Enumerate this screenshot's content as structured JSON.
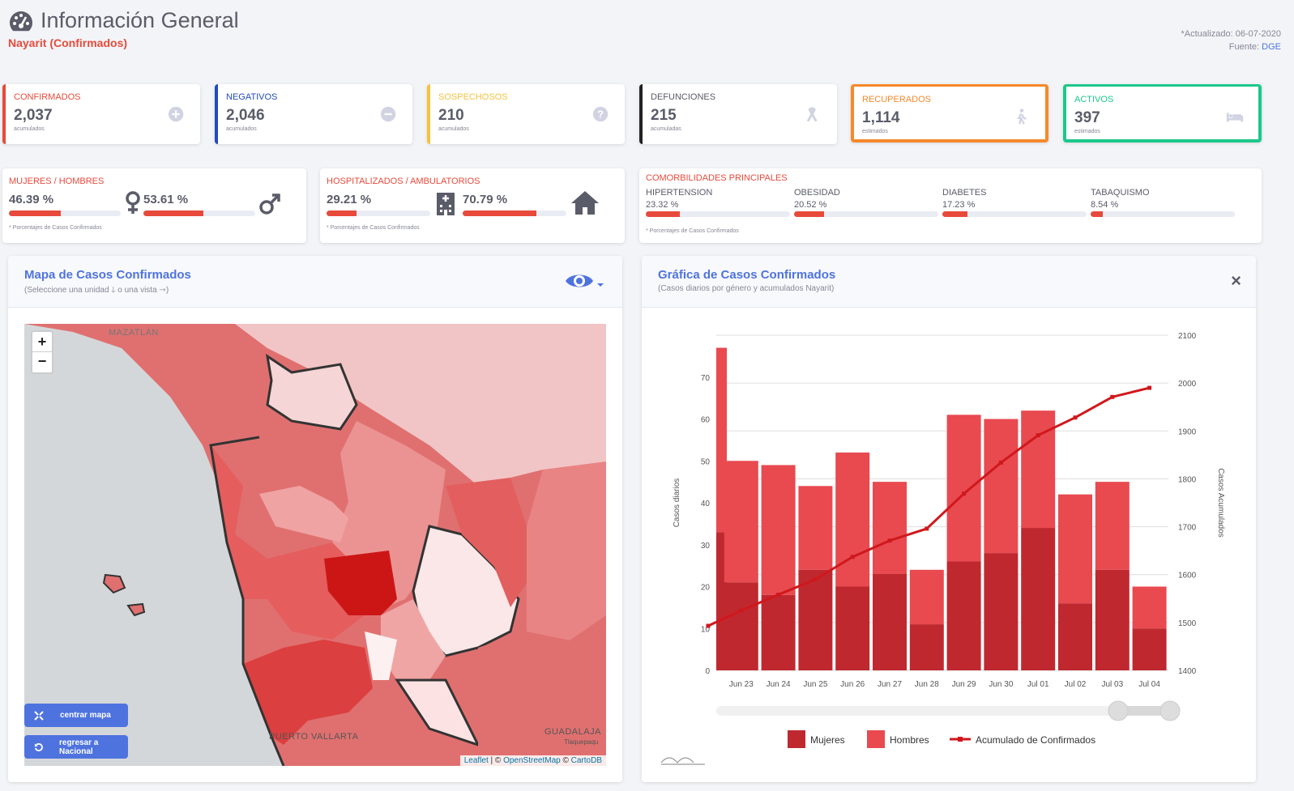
{
  "header": {
    "title": "Información General",
    "subtitle": "Nayarit (Confirmados)",
    "updated": "*Actualizado: 06-07-2020",
    "source_label": "Fuente:",
    "source_link": "DGE"
  },
  "kpis": [
    {
      "label": "CONFIRMADOS",
      "value": "2,037",
      "note": "acumulados",
      "color": "#e74a3b",
      "icon": "plus-circle-icon"
    },
    {
      "label": "NEGATIVOS",
      "value": "2,046",
      "note": "acumulados",
      "color": "#224abe",
      "icon": "minus-circle-icon"
    },
    {
      "label": "SOSPECHOSOS",
      "value": "210",
      "note": "acumulados",
      "color": "#f6c23e",
      "icon": "question-circle-icon"
    },
    {
      "label": "DEFUNCIONES",
      "value": "215",
      "note": "acumuladas",
      "color": "#222222",
      "icon": "ribbon-icon"
    },
    {
      "label": "RECUPERADOS",
      "value": "1,114",
      "note": "estimados",
      "color": "#f6892b",
      "icon": "walking-icon"
    },
    {
      "label": "ACTIVOS",
      "value": "397",
      "note": "estimados",
      "color": "#1cc88a",
      "icon": "bed-icon"
    }
  ],
  "gender": {
    "title": "MUJERES / HOMBRES",
    "women_pct": "46.39 %",
    "men_pct": "53.61 %",
    "women": 46.39,
    "men": 53.61,
    "footnote": "* Porcentajes  de Casos Confirmados"
  },
  "hosp": {
    "title": "HOSPITALIZADOS / AMBULATORIOS",
    "hosp_pct": "29.21 %",
    "amb_pct": "70.79 %",
    "hosp": 29.21,
    "amb": 70.79,
    "footnote": "* Porcentajes  de Casos Confirmados"
  },
  "comorb": {
    "title": "COMORBILIDADES PRINCIPALES",
    "footnote": "* Porcentajes  de Casos Confirmados",
    "items": [
      {
        "name": "HIPERTENSION",
        "pct": "23.32 %",
        "v": 23.32
      },
      {
        "name": "OBESIDAD",
        "pct": "20.52 %",
        "v": 20.52
      },
      {
        "name": "DIABETES",
        "pct": "17.23 %",
        "v": 17.23
      },
      {
        "name": "TABAQUISMO",
        "pct": "8.54 %",
        "v": 8.54
      }
    ]
  },
  "map": {
    "title": "Mapa de Casos Confirmados",
    "subtitle": "(Seleccione una unidad 🡓 o una vista 🡒)",
    "zoom_in": "+",
    "zoom_out": "−",
    "labels": {
      "mazatlan": "MAZATLÁN",
      "pv": "PUERTO VALLARTA",
      "gdl": "GUADALAJA",
      "tlq": "Tlaquepaqu"
    },
    "btn_center": "centrar mapa",
    "btn_back": "regresar a Nacional",
    "attribution": {
      "leaflet": "Leaflet",
      "sep": " | © ",
      "osm": "OpenStreetMap",
      "sep2": " © ",
      "carto": "CartoDB"
    }
  },
  "chart_panel": {
    "title": "Gráfica de Casos Confirmados",
    "subtitle": "(Casos diarios por género y acumulados Nayarit)",
    "close": "×"
  },
  "chart_data": {
    "type": "bar",
    "categories": [
      "",
      "Jun 23",
      "Jun 24",
      "Jun 25",
      "Jun 26",
      "Jun 27",
      "Jun 28",
      "Jun 29",
      "Jun 30",
      "Jul 01",
      "Jul 02",
      "Jul 03",
      "Jul 04"
    ],
    "tick_labels": [
      "Jun 23",
      "Jun 24",
      "Jun 25",
      "Jun 26",
      "Jun 27",
      "Jun 28",
      "Jun 29",
      "Jun 30",
      "Jul 01",
      "Jul 02",
      "Jul 03",
      "Jul 04"
    ],
    "series": [
      {
        "name": "Mujeres",
        "type": "bar",
        "color": "#c0282f",
        "values": [
          33,
          21,
          18,
          24,
          20,
          23,
          11,
          26,
          28,
          34,
          16,
          24,
          10
        ]
      },
      {
        "name": "Hombres",
        "type": "bar",
        "color": "#e84a50",
        "values": [
          44,
          29,
          31,
          20,
          32,
          22,
          13,
          35,
          32,
          28,
          26,
          21,
          10
        ]
      },
      {
        "name": "Acumulado de Confirmados",
        "type": "line",
        "color": "#d0181c",
        "axis": "right",
        "values": [
          1493,
          1525,
          1558,
          1590,
          1637,
          1671,
          1696,
          1769,
          1834,
          1891,
          1928,
          1971,
          1990
        ]
      }
    ],
    "ylabel": "Casos diarios",
    "y2label": "Casos Acumulados",
    "ylim": [
      0,
      80
    ],
    "yticks": [
      0,
      10,
      20,
      30,
      40,
      50,
      60,
      70
    ],
    "y2lim": [
      1400,
      2100
    ],
    "y2ticks": [
      1400,
      1500,
      1600,
      1700,
      1800,
      1900,
      2000,
      2100
    ]
  }
}
